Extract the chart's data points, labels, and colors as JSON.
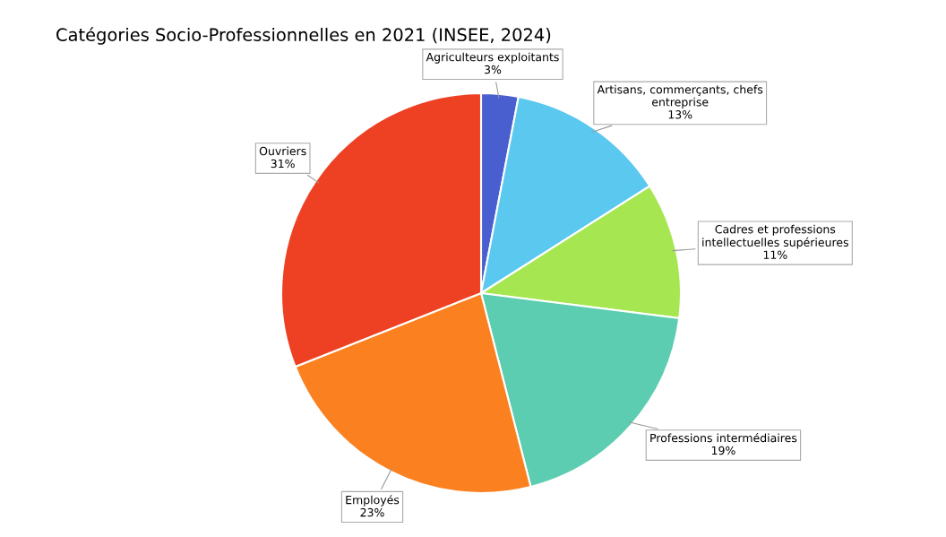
{
  "chart_data": {
    "type": "pie",
    "title": "Catégories Socio-Professionnelles en 2021 (INSEE, 2024)",
    "categories": [
      "Agriculteurs exploitants",
      "Artisans, commerçants, chefs entreprise",
      "Cadres et professions intellectuelles supérieures",
      "Professions intermédiaires",
      "Employés",
      "Ouvriers"
    ],
    "values": [
      3,
      13,
      11,
      19,
      23,
      31
    ],
    "value_labels": [
      "3%",
      "13%",
      "11%",
      "19%",
      "23%",
      "31%"
    ],
    "colors": [
      "#4a5fcf",
      "#5bc8f0",
      "#a6e650",
      "#5ccdb0",
      "#fb8020",
      "#ee4023"
    ]
  }
}
